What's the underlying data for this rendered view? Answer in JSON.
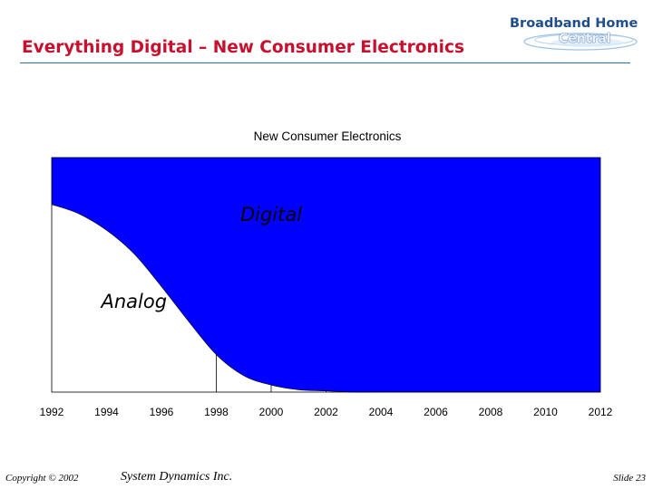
{
  "slide": {
    "title": "Everything Digital – New Consumer Electronics"
  },
  "logo": {
    "line1": "Broadband Home",
    "line2": "Central"
  },
  "footer": {
    "copyright": "Copyright © 2002",
    "company": "System Dynamics Inc.",
    "slide_number": "Slide 23"
  },
  "colors": {
    "title": "#c8102e",
    "digital_fill": "#0000ff",
    "analog_fill": "#ffffff",
    "rule": "#2e6fb0"
  },
  "chart_data": {
    "type": "area",
    "title": "New Consumer Electronics",
    "xlabel": "",
    "ylabel": "",
    "x": [
      1992,
      1993,
      1994,
      1995,
      1996,
      1997,
      1998,
      1999,
      2000,
      2001,
      2002,
      2003,
      2004,
      2005,
      2006
    ],
    "xticks": [
      "1992",
      "1994",
      "1996",
      "1998",
      "2000",
      "2002",
      "2004",
      "2006",
      "2008",
      "2010",
      "2012"
    ],
    "xlim": [
      1992,
      2012
    ],
    "ylim": [
      0,
      100
    ],
    "series": [
      {
        "name": "Digital",
        "values": [
          20,
          24,
          31,
          41,
          55,
          70,
          84,
          93,
          97,
          99,
          99.5,
          100,
          100,
          100,
          100
        ]
      },
      {
        "name": "Analog",
        "values": [
          80,
          76,
          69,
          59,
          45,
          30,
          16,
          7,
          3,
          1,
          0.5,
          0,
          0,
          0,
          0
        ]
      }
    ],
    "stacked": true,
    "grid": false,
    "legend": "inline labels"
  }
}
